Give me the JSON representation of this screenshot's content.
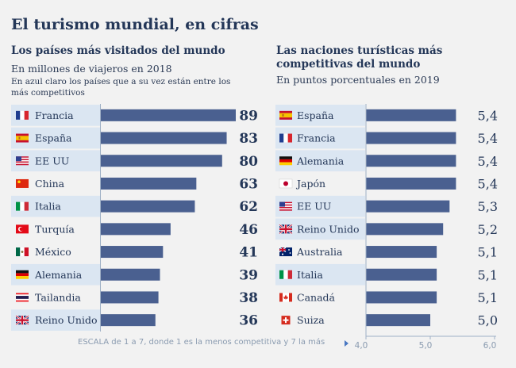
{
  "title": "El turismo mundial, en cifras",
  "left_panel": {
    "title": "Los países más visitados del mundo",
    "subtitle": "En millones de viajeros en 2018",
    "note": "En azul claro los países que a su vez están entre los más competitivos"
  },
  "right_panel": {
    "title": "Las naciones turísticas más competitivas del mundo",
    "subtitle": "En puntos porcentuales en 2019"
  },
  "scale_note": "ESCALA de 1 a 7, donde 1 es  la menos competitiva y 7 la más",
  "colors": {
    "bar": "#4a6090",
    "highlight": "#dbe6f2",
    "text": "#243758"
  },
  "chart_data": [
    {
      "type": "bar",
      "orientation": "horizontal",
      "categories": [
        "Francia",
        "España",
        "EE UU",
        "China",
        "Italia",
        "Turquía",
        "México",
        "Alemania",
        "Tailandia",
        "Reino Unido"
      ],
      "values": [
        89,
        83,
        80,
        63,
        62,
        46,
        41,
        39,
        38,
        36
      ],
      "value_labels": [
        "89",
        "83",
        "80",
        "63",
        "62",
        "46",
        "41",
        "39",
        "38",
        "36"
      ],
      "highlighted": [
        true,
        true,
        true,
        false,
        true,
        false,
        false,
        true,
        false,
        true
      ],
      "flags": [
        "flag-france-icon",
        "flag-spain-icon",
        "flag-usa-icon",
        "flag-china-icon",
        "flag-italy-icon",
        "flag-turkey-icon",
        "flag-mexico-icon",
        "flag-germany-icon",
        "flag-thailand-icon",
        "flag-uk-icon"
      ],
      "xlim": [
        0,
        89
      ]
    },
    {
      "type": "bar",
      "orientation": "horizontal",
      "categories": [
        "España",
        "Francia",
        "Alemania",
        "Japón",
        "EE UU",
        "Reino Unido",
        "Australia",
        "Italia",
        "Canadá",
        "Suiza"
      ],
      "values": [
        5.4,
        5.4,
        5.4,
        5.4,
        5.3,
        5.2,
        5.1,
        5.1,
        5.1,
        5.0
      ],
      "value_labels": [
        "5,4",
        "5,4",
        "5,4",
        "5,4",
        "5,3",
        "5,2",
        "5,1",
        "5,1",
        "5,1",
        "5,0"
      ],
      "highlighted": [
        true,
        true,
        true,
        false,
        true,
        true,
        false,
        true,
        false,
        false
      ],
      "flags": [
        "flag-spain-icon",
        "flag-france-icon",
        "flag-germany-icon",
        "flag-japan-icon",
        "flag-usa-icon",
        "flag-uk-icon",
        "flag-australia-icon",
        "flag-italy-icon",
        "flag-canada-icon",
        "flag-switzerland-icon"
      ],
      "xlim": [
        4.0,
        6.0
      ],
      "xticks": [
        "4,0",
        "5,0",
        "6,0"
      ]
    }
  ]
}
